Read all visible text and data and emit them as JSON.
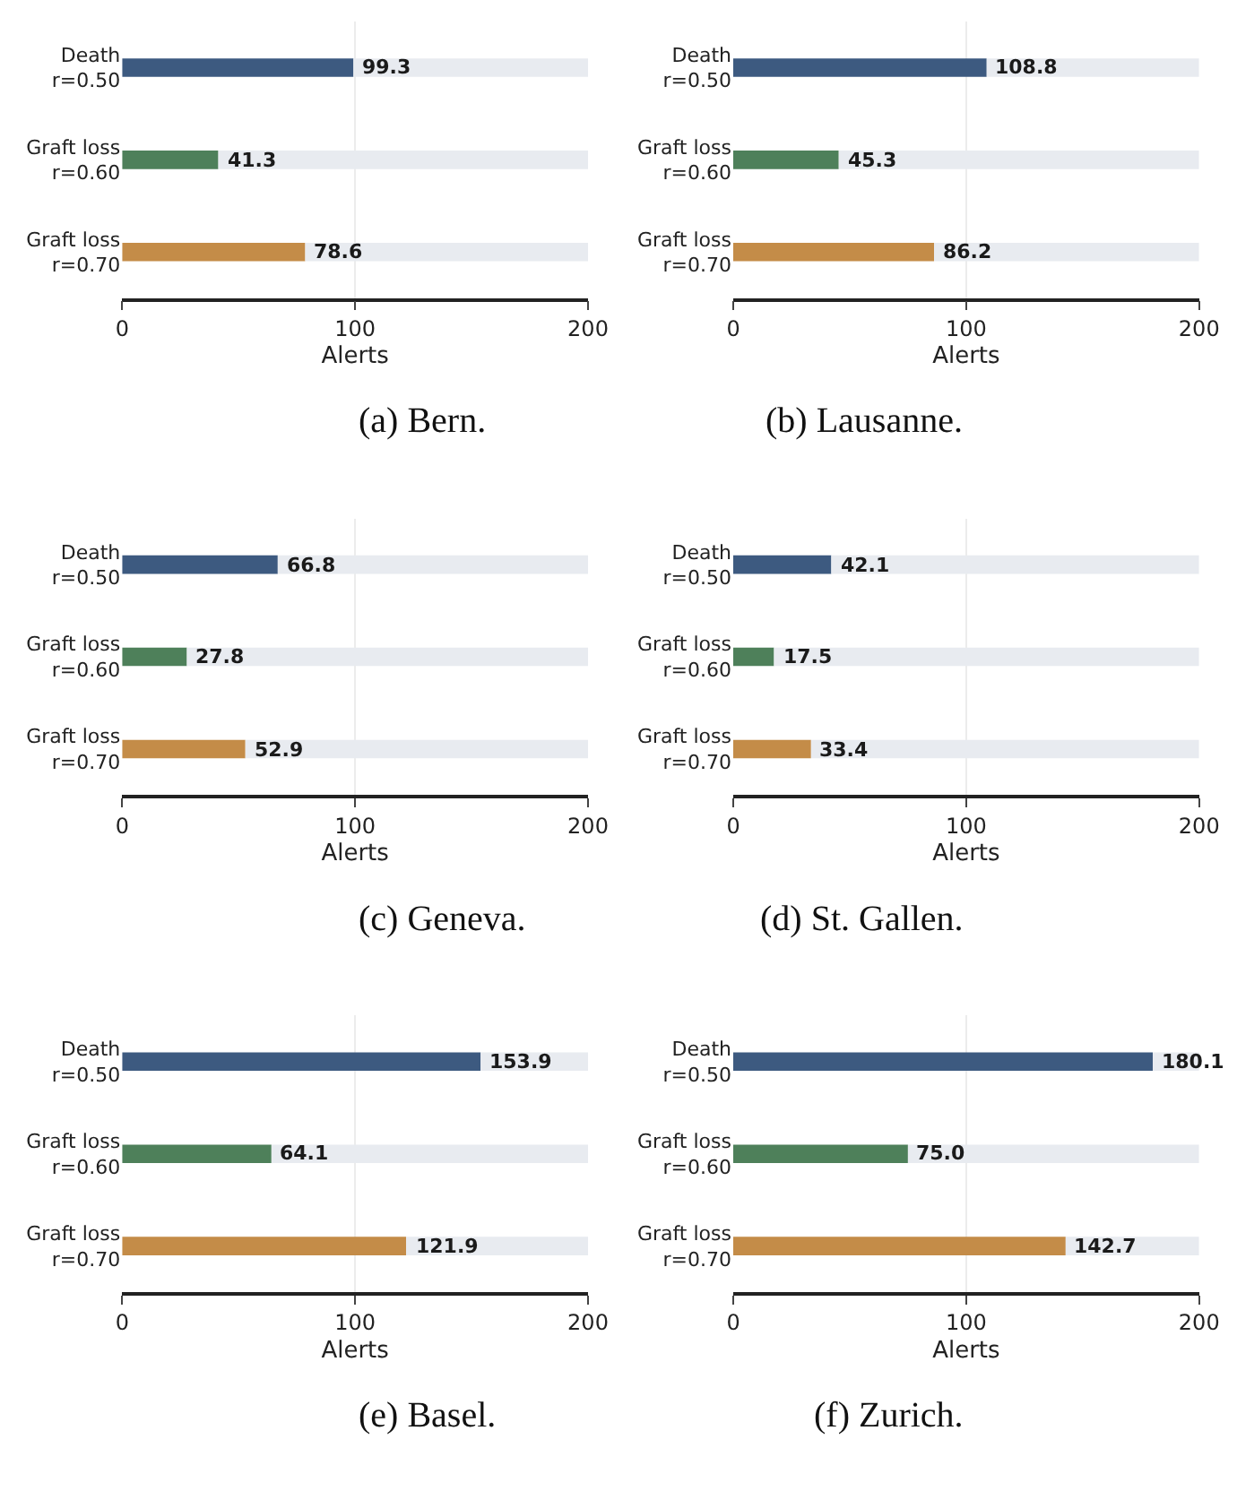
{
  "chart_data": [
    {
      "type": "bar",
      "orientation": "horizontal",
      "stacked": true,
      "title": "(a) Bern.",
      "xlabel": "Alerts",
      "categories": [
        "Death\nr=0.50",
        "Graft loss\nr=0.60",
        "Graft loss\nr=0.70"
      ],
      "xlim": [
        0,
        200
      ],
      "xticks": [
        0,
        100,
        200
      ],
      "grid": "x",
      "series": [
        {
          "colors": [
            "#3d5a80",
            "#4e805a",
            "#c48c48"
          ],
          "values": [
            99.3,
            41.3,
            78.6
          ],
          "value_labels": [
            "99.3",
            "41.3",
            "78.6"
          ]
        },
        {
          "color": "#e8ebf0",
          "values": [
            100.7,
            158.7,
            121.4
          ]
        }
      ]
    },
    {
      "type": "bar",
      "orientation": "horizontal",
      "stacked": true,
      "title": "(b) Lausanne.",
      "xlabel": "Alerts",
      "categories": [
        "Death\nr=0.50",
        "Graft loss\nr=0.60",
        "Graft loss\nr=0.70"
      ],
      "xlim": [
        0,
        200
      ],
      "xticks": [
        0,
        100,
        200
      ],
      "grid": "x",
      "series": [
        {
          "colors": [
            "#3d5a80",
            "#4e805a",
            "#c48c48"
          ],
          "values": [
            108.8,
            45.3,
            86.2
          ],
          "value_labels": [
            "108.8",
            "45.3",
            "86.2"
          ]
        },
        {
          "color": "#e8ebf0",
          "values": [
            91.2,
            154.7,
            113.8
          ]
        }
      ]
    },
    {
      "type": "bar",
      "orientation": "horizontal",
      "stacked": true,
      "title": "(c) Geneva.",
      "xlabel": "Alerts",
      "categories": [
        "Death\nr=0.50",
        "Graft loss\nr=0.60",
        "Graft loss\nr=0.70"
      ],
      "xlim": [
        0,
        200
      ],
      "xticks": [
        0,
        100,
        200
      ],
      "grid": "x",
      "series": [
        {
          "colors": [
            "#3d5a80",
            "#4e805a",
            "#c48c48"
          ],
          "values": [
            66.8,
            27.8,
            52.9
          ],
          "value_labels": [
            "66.8",
            "27.8",
            "52.9"
          ]
        },
        {
          "color": "#e8ebf0",
          "values": [
            133.2,
            172.2,
            147.1
          ]
        }
      ]
    },
    {
      "type": "bar",
      "orientation": "horizontal",
      "stacked": true,
      "title": "(d) St. Gallen.",
      "xlabel": "Alerts",
      "categories": [
        "Death\nr=0.50",
        "Graft loss\nr=0.60",
        "Graft loss\nr=0.70"
      ],
      "xlim": [
        0,
        200
      ],
      "xticks": [
        0,
        100,
        200
      ],
      "grid": "x",
      "series": [
        {
          "colors": [
            "#3d5a80",
            "#4e805a",
            "#c48c48"
          ],
          "values": [
            42.1,
            17.5,
            33.4
          ],
          "value_labels": [
            "42.1",
            "17.5",
            "33.4"
          ]
        },
        {
          "color": "#e8ebf0",
          "values": [
            157.9,
            182.5,
            166.6
          ]
        }
      ]
    },
    {
      "type": "bar",
      "orientation": "horizontal",
      "stacked": true,
      "title": "(e) Basel.",
      "xlabel": "Alerts",
      "categories": [
        "Death\nr=0.50",
        "Graft loss\nr=0.60",
        "Graft loss\nr=0.70"
      ],
      "xlim": [
        0,
        200
      ],
      "xticks": [
        0,
        100,
        200
      ],
      "grid": "x",
      "series": [
        {
          "colors": [
            "#3d5a80",
            "#4e805a",
            "#c48c48"
          ],
          "values": [
            153.9,
            64.1,
            121.9
          ],
          "value_labels": [
            "153.9",
            "64.1",
            "121.9"
          ]
        },
        {
          "color": "#e8ebf0",
          "values": [
            46.1,
            135.9,
            78.1
          ]
        }
      ]
    },
    {
      "type": "bar",
      "orientation": "horizontal",
      "stacked": true,
      "title": "(f) Zurich.",
      "xlabel": "Alerts",
      "categories": [
        "Death\nr=0.50",
        "Graft loss\nr=0.60",
        "Graft loss\nr=0.70"
      ],
      "xlim": [
        0,
        200
      ],
      "xticks": [
        0,
        100,
        200
      ],
      "grid": "x",
      "series": [
        {
          "colors": [
            "#3d5a80",
            "#4e805a",
            "#c48c48"
          ],
          "values": [
            180.1,
            75.0,
            142.7
          ],
          "value_labels": [
            "180.1",
            "75.0",
            "142.7"
          ]
        },
        {
          "color": "#e8ebf0",
          "values": [
            19.9,
            125.0,
            57.3
          ]
        }
      ]
    }
  ]
}
